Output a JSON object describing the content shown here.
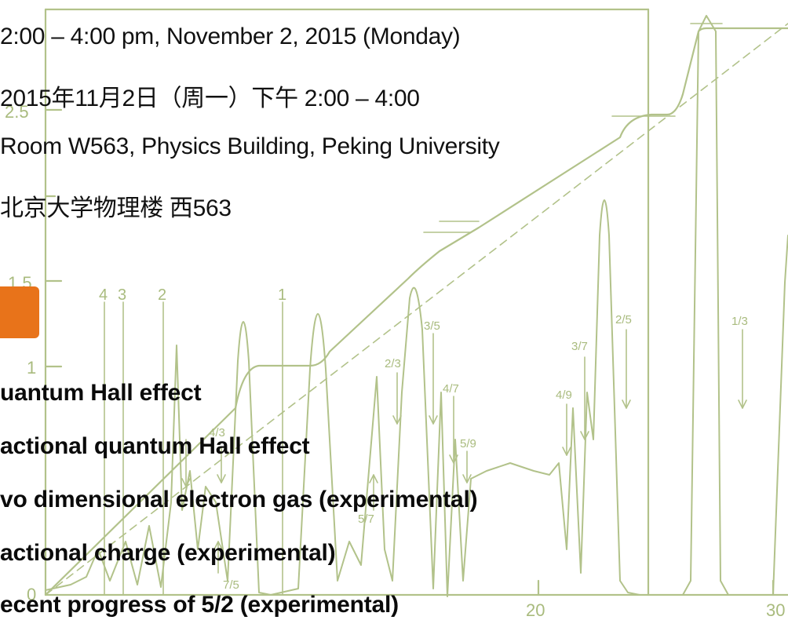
{
  "info": {
    "time_en": "2:00 – 4:00 pm, November 2, 2015 (Monday)",
    "time_cn": "2015年11月2日（周一）下午 2:00 – 4:00",
    "place_en": "Room W563, Physics Building, Peking University",
    "place_cn": "北京大学物理楼 西563"
  },
  "outline": {
    "items": [
      "uantum Hall effect",
      "actional quantum Hall effect",
      "vo dimensional electron gas (experimental)",
      "actional charge (experimental)",
      "ecent progress of 5/2 (experimental)"
    ]
  },
  "background_plot": {
    "y_ticks": [
      "2.5",
      "1.5",
      "1",
      "0"
    ],
    "x_ticks": [
      "20",
      "30"
    ],
    "integer_labels": [
      "4",
      "3",
      "2",
      "1"
    ],
    "fraction_labels": [
      "4/3",
      "7/5",
      "5/7",
      "2/3",
      "3/5",
      "4/7",
      "5/9",
      "4/9",
      "3/7",
      "2/5",
      "1/3"
    ],
    "color": "#a9bb7e"
  }
}
